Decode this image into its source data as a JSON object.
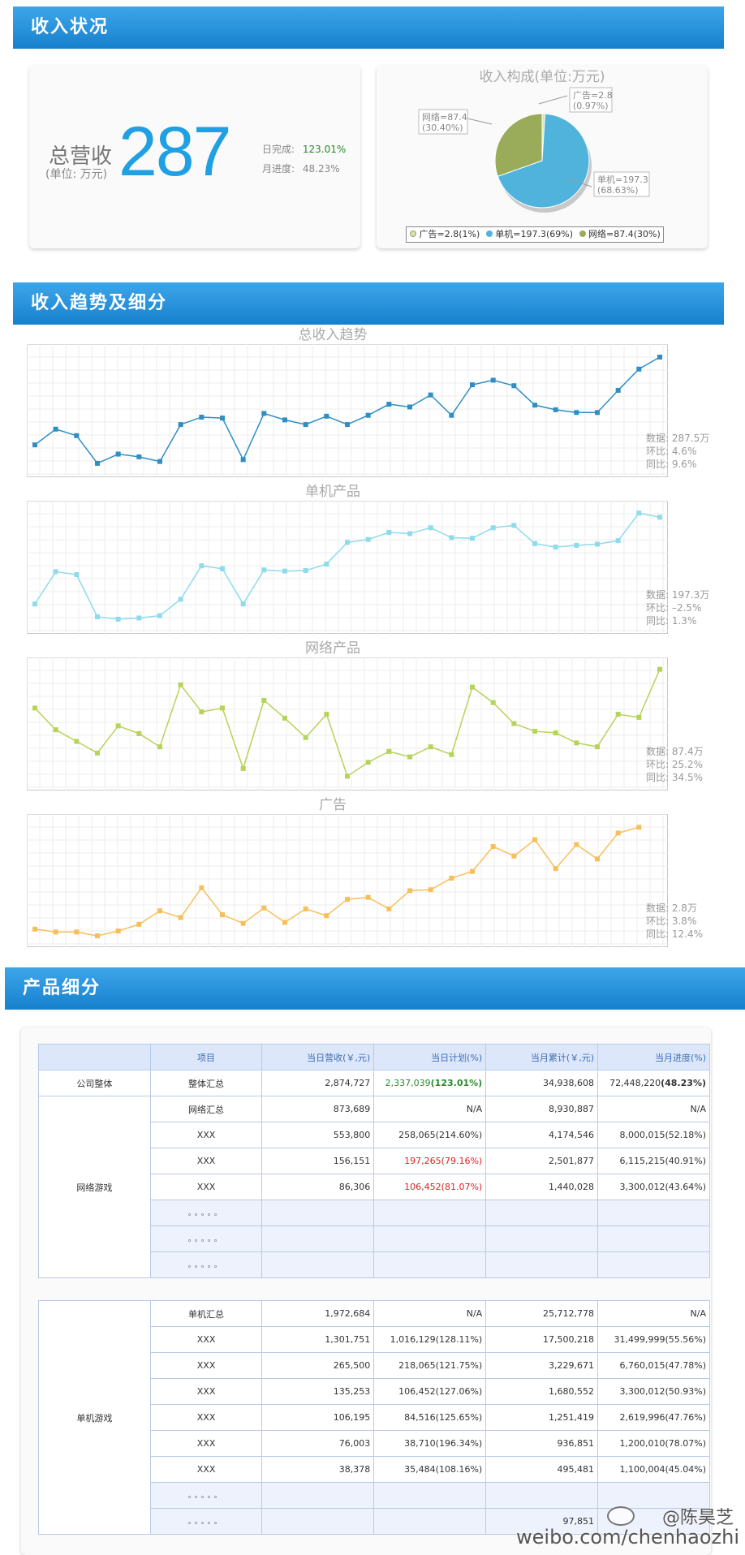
{
  "section1": {
    "title": "收入状况"
  },
  "summary": {
    "label_main": "总营收",
    "label_unit": "(单位: 万元)",
    "value": "287",
    "daily_label": "日完成:",
    "daily_value": "123.01%",
    "monthly_label": "月进度:",
    "monthly_value": "48.23%"
  },
  "composition": {
    "title": "收入构成(单位:万元)",
    "callouts": {
      "ad_1": "广告=2.8",
      "ad_2": "(0.97%)",
      "net_1": "网络=87.4",
      "net_2": "(30.40%)",
      "single_1": "单机=197.3",
      "single_2": "(68.63%)"
    },
    "legend": [
      "广告=2.8(1%)",
      "单机=197.3(69%)",
      "网络=87.4(30%)"
    ],
    "colors": {
      "ad": "#d8e49a",
      "single": "#4fb3dc",
      "net": "#9aab5a"
    }
  },
  "chart_data": [
    {
      "type": "pie",
      "title": "收入构成(单位:万元)",
      "categories": [
        "广告",
        "单机",
        "网络"
      ],
      "values": [
        2.8,
        197.3,
        87.4
      ],
      "legend": "bottom"
    },
    {
      "type": "line",
      "title": "总收入趋势",
      "color": "#2f8fc3",
      "grid": true,
      "values": [
        98,
        115,
        108,
        78,
        88,
        85,
        80,
        120,
        128,
        127,
        82,
        132,
        125,
        120,
        129,
        120,
        130,
        142,
        139,
        152,
        130,
        163,
        168,
        162,
        141,
        136,
        133,
        133,
        157,
        180,
        193
      ]
    },
    {
      "type": "line",
      "title": "单机产品",
      "color": "#8edbeb",
      "grid": true,
      "values": [
        40,
        95,
        90,
        18,
        14,
        16,
        20,
        48,
        105,
        100,
        40,
        98,
        96,
        97,
        108,
        145,
        150,
        162,
        160,
        170,
        153,
        152,
        170,
        174,
        143,
        137,
        140,
        142,
        148,
        195,
        188
      ]
    },
    {
      "type": "line",
      "title": "网络产品",
      "color": "#b6d35a",
      "grid": true,
      "values": [
        148,
        120,
        105,
        90,
        125,
        115,
        98,
        178,
        143,
        148,
        70,
        158,
        135,
        110,
        140,
        60,
        78,
        92,
        85,
        98,
        88,
        175,
        155,
        128,
        118,
        116,
        103,
        98,
        140,
        136,
        198
      ]
    },
    {
      "type": "line",
      "title": "广告",
      "color": "#f7bf5a",
      "grid": true,
      "values": [
        12,
        9,
        9,
        5,
        10,
        17,
        31,
        24,
        55,
        27,
        18,
        34,
        19,
        33,
        26,
        43,
        45,
        33,
        52,
        53,
        65,
        72,
        98,
        88,
        105,
        75,
        100,
        85,
        112,
        118
      ]
    }
  ],
  "section2": {
    "title": "收入趋势及细分"
  },
  "trend_charts": [
    {
      "title": "总收入趋势",
      "stat1": "数据: 287.5万",
      "stat2": "环比: 4.6%",
      "stat3": "同比: 9.6%"
    },
    {
      "title": "单机产品",
      "stat1": "数据: 197.3万",
      "stat2": "环比: –2.5%",
      "stat3": "同比: 1.3%"
    },
    {
      "title": "网络产品",
      "stat1": "数据: 87.4万",
      "stat2": "环比: 25.2%",
      "stat3": "同比: 34.5%"
    },
    {
      "title": "广告",
      "stat1": "数据: 2.8万",
      "stat2": "环比: 3.8%",
      "stat3": "同比: 12.4%"
    }
  ],
  "section3": {
    "title": "产品细分"
  },
  "table": {
    "headers": [
      "项目",
      "当日营收(￥,元)",
      "当日计划(%)",
      "当月累计(￥,元)",
      "当月进度(%)"
    ],
    "company_group": "公司整体",
    "company_row": {
      "item": "整体汇总",
      "daily": "2,874,727",
      "plan_num": "2,337,039",
      "plan_pct": "(123.01%)",
      "month": "34,938,608",
      "progress_num": "72,448,220",
      "progress_pct": "(48.23%)"
    },
    "net_group": "网络游戏",
    "net_rows": [
      {
        "item": "网络汇总",
        "daily": "873,689",
        "plan": "N/A",
        "month": "8,930,887",
        "progress": "N/A"
      },
      {
        "item": "XXX",
        "daily": "553,800",
        "plan": "258,065(214.60%)",
        "month": "4,174,546",
        "progress": "8,000,015(52.18%)"
      },
      {
        "item": "XXX",
        "daily": "156,151",
        "plan": "197,265(79.16%)",
        "month": "2,501,877",
        "progress": "6,115,215(40.91%)"
      },
      {
        "item": "XXX",
        "daily": "86,306",
        "plan": "106,452(81.07%)",
        "month": "1,440,028",
        "progress": "3,300,012(43.64%)"
      },
      {
        "item": "。。。。。",
        "daily": "",
        "plan": "",
        "month": "",
        "progress": ""
      },
      {
        "item": "。。。。。",
        "daily": "",
        "plan": "",
        "month": "",
        "progress": ""
      },
      {
        "item": "。。。。。",
        "daily": "",
        "plan": "",
        "month": "",
        "progress": ""
      }
    ],
    "single_group": "单机游戏",
    "single_rows": [
      {
        "item": "单机汇总",
        "daily": "1,972,684",
        "plan": "N/A",
        "month": "25,712,778",
        "progress": "N/A"
      },
      {
        "item": "XXX",
        "daily": "1,301,751",
        "plan": "1,016,129(128.11%)",
        "month": "17,500,218",
        "progress": "31,499,999(55.56%)"
      },
      {
        "item": "XXX",
        "daily": "265,500",
        "plan": "218,065(121.75%)",
        "month": "3,229,671",
        "progress": "6,760,015(47.78%)"
      },
      {
        "item": "XXX",
        "daily": "135,253",
        "plan": "106,452(127.06%)",
        "month": "1,680,552",
        "progress": "3,300,012(50.93%)"
      },
      {
        "item": "XXX",
        "daily": "106,195",
        "plan": "84,516(125.65%)",
        "month": "1,251,419",
        "progress": "2,619,996(47.76%)"
      },
      {
        "item": "XXX",
        "daily": "76,003",
        "plan": "38,710(196.34%)",
        "month": "936,851",
        "progress": "1,200,010(78.07%)"
      },
      {
        "item": "XXX",
        "daily": "38,378",
        "plan": "35,484(108.16%)",
        "month": "495,481",
        "progress": "1,100,004(45.04%)"
      },
      {
        "item": "。。。。。",
        "daily": "",
        "plan": "",
        "month": "",
        "progress": ""
      },
      {
        "item": "。。。。。",
        "daily": "",
        "plan": "",
        "month": "97,851",
        "progress": ""
      }
    ]
  },
  "watermark": {
    "handle": "@陈昊芝",
    "url": "weibo.com/chenhaozhi"
  }
}
